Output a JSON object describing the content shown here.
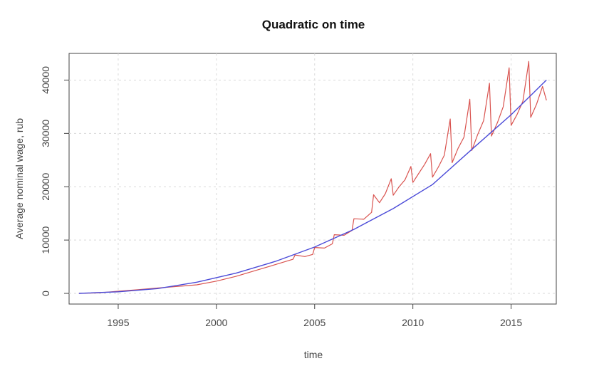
{
  "chart_data": {
    "type": "line",
    "title": "Quadratic on time",
    "xlabel": "time",
    "ylabel": "Average nominal wage, rub",
    "xlim": [
      1992.5,
      2017.3
    ],
    "ylim": [
      -2000,
      45000
    ],
    "x_ticks": [
      1995,
      2000,
      2005,
      2010,
      2015
    ],
    "y_ticks": [
      0,
      10000,
      20000,
      30000,
      40000
    ],
    "x_tick_labels": [
      "1995",
      "2000",
      "2005",
      "2010",
      "2015"
    ],
    "y_tick_labels": [
      "0",
      "10000",
      "20000",
      "30000",
      "40000"
    ],
    "grid": true,
    "grid_style": "dotted light gray",
    "legend": "none",
    "colors": {
      "actual": "#d9534f",
      "fitted": "#4b4bd8",
      "axis": "#444444",
      "grid": "#d9d9d9"
    },
    "series": [
      {
        "style": "observed",
        "x": [
          1993.0,
          1994.0,
          1995.0,
          1996.0,
          1997.0,
          1998.0,
          1999.0,
          2000.0,
          2001.0,
          2002.0,
          2003.0,
          2003.9,
          2004.0,
          2004.5,
          2004.9,
          2005.0,
          2005.5,
          2005.9,
          2006.0,
          2006.5,
          2006.9,
          2007.0,
          2007.5,
          2007.9,
          2008.0,
          2008.3,
          2008.6,
          2008.9,
          2009.0,
          2009.3,
          2009.6,
          2009.9,
          2010.0,
          2010.3,
          2010.6,
          2010.9,
          2011.0,
          2011.3,
          2011.6,
          2011.9,
          2012.0,
          2012.3,
          2012.6,
          2012.9,
          2013.0,
          2013.3,
          2013.6,
          2013.9,
          2014.0,
          2014.3,
          2014.6,
          2014.9,
          2015.0,
          2015.3,
          2015.6,
          2015.9,
          2016.0,
          2016.3,
          2016.6,
          2016.8
        ],
        "y": [
          0,
          100,
          400,
          700,
          1000,
          1300,
          1600,
          2300,
          3200,
          4300,
          5400,
          6400,
          7200,
          6900,
          7300,
          8600,
          8500,
          9300,
          11000,
          10900,
          11800,
          14000,
          13900,
          15200,
          18500,
          17000,
          18700,
          21500,
          18400,
          20000,
          21300,
          23800,
          20800,
          22500,
          24200,
          26200,
          21800,
          23700,
          25900,
          32700,
          24500,
          27200,
          29300,
          36400,
          26800,
          29800,
          32400,
          39400,
          29500,
          32000,
          35000,
          42300,
          31500,
          33500,
          36000,
          43500,
          33000,
          35500,
          38800,
          36200
        ]
      },
      {
        "style": "fitted",
        "x": [
          1993,
          1995,
          1997,
          1999,
          2001,
          2003,
          2005,
          2007,
          2009,
          2011,
          2013,
          2015,
          2016.8
        ],
        "y": [
          0,
          300,
          900,
          2100,
          3800,
          6000,
          8700,
          12000,
          15900,
          20400,
          27000,
          33500,
          40000
        ]
      }
    ]
  }
}
